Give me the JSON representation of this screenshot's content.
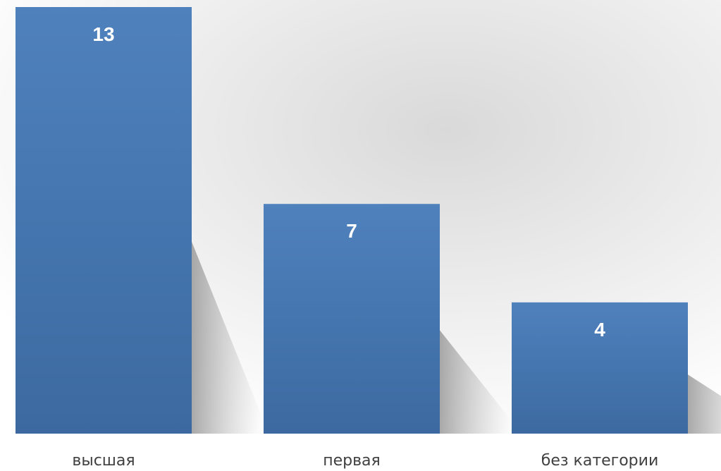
{
  "chart_data": {
    "type": "bar",
    "categories": [
      "высшая",
      "первая",
      "без категории"
    ],
    "values": [
      13,
      7,
      4
    ],
    "title": "",
    "xlabel": "",
    "ylabel": "",
    "ylim": [
      0,
      13
    ],
    "grid": false,
    "legend": "none",
    "data_labels": true,
    "colors": {
      "bar_top": "#4f81bd",
      "bar_bottom": "#3c6aa0",
      "label_text": "#ffffff",
      "category_text": "#404040",
      "backdrop": "#dcdcdc"
    }
  }
}
